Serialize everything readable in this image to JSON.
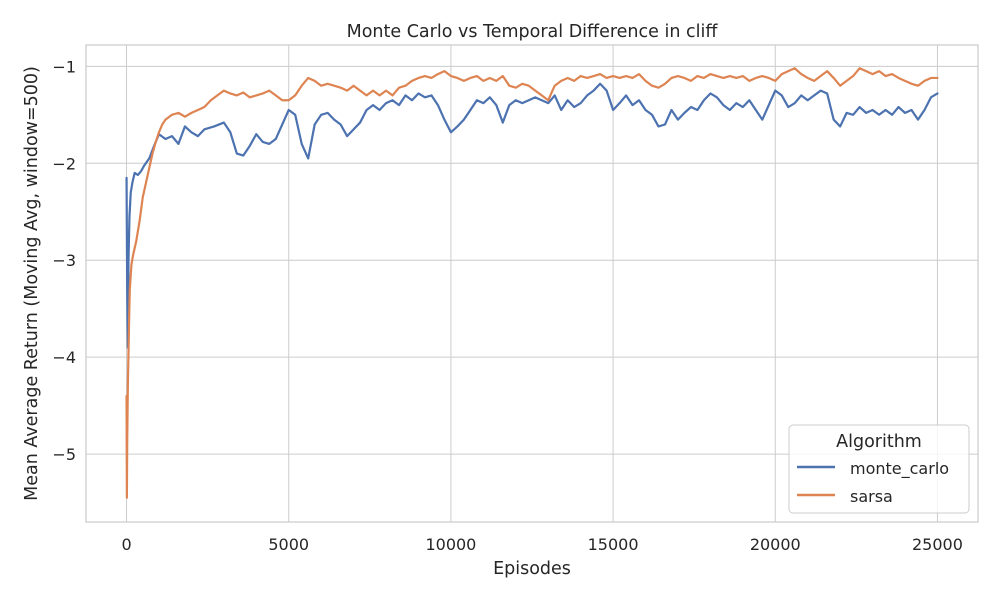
{
  "chart_data": {
    "type": "line",
    "title": "Monte Carlo vs Temporal Difference in cliff",
    "xlabel": "Episodes",
    "ylabel": "Mean Average Return (Moving Avg, window=500)",
    "xlim": [
      -1250,
      26250
    ],
    "ylim": [
      -5.7,
      -0.78
    ],
    "xticks": [
      0,
      5000,
      10000,
      15000,
      20000,
      25000
    ],
    "xtick_labels": [
      "0",
      "5000",
      "10000",
      "15000",
      "20000",
      "25000"
    ],
    "yticks": [
      -5,
      -4,
      -3,
      -2,
      -1
    ],
    "ytick_labels": [
      "−5",
      "−4",
      "−3",
      "−2",
      "−1"
    ],
    "grid": true,
    "legend": {
      "title": "Algorithm",
      "placement": "lower-right"
    },
    "series": [
      {
        "name": "monte_carlo",
        "color": "#4c72b0",
        "points": [
          [
            0,
            -2.15
          ],
          [
            20,
            -3.3
          ],
          [
            40,
            -3.9
          ],
          [
            60,
            -3.0
          ],
          [
            90,
            -2.55
          ],
          [
            130,
            -2.3
          ],
          [
            180,
            -2.2
          ],
          [
            250,
            -2.1
          ],
          [
            350,
            -2.12
          ],
          [
            450,
            -2.08
          ],
          [
            550,
            -2.02
          ],
          [
            700,
            -1.95
          ],
          [
            850,
            -1.82
          ],
          [
            1000,
            -1.7
          ],
          [
            1200,
            -1.75
          ],
          [
            1400,
            -1.72
          ],
          [
            1600,
            -1.8
          ],
          [
            1800,
            -1.62
          ],
          [
            2000,
            -1.68
          ],
          [
            2200,
            -1.72
          ],
          [
            2400,
            -1.65
          ],
          [
            2700,
            -1.62
          ],
          [
            3000,
            -1.58
          ],
          [
            3200,
            -1.68
          ],
          [
            3400,
            -1.9
          ],
          [
            3600,
            -1.92
          ],
          [
            3800,
            -1.82
          ],
          [
            4000,
            -1.7
          ],
          [
            4200,
            -1.78
          ],
          [
            4400,
            -1.8
          ],
          [
            4600,
            -1.75
          ],
          [
            4800,
            -1.6
          ],
          [
            5000,
            -1.45
          ],
          [
            5200,
            -1.5
          ],
          [
            5400,
            -1.8
          ],
          [
            5600,
            -1.95
          ],
          [
            5800,
            -1.6
          ],
          [
            6000,
            -1.5
          ],
          [
            6200,
            -1.48
          ],
          [
            6400,
            -1.55
          ],
          [
            6600,
            -1.6
          ],
          [
            6800,
            -1.72
          ],
          [
            7000,
            -1.65
          ],
          [
            7200,
            -1.58
          ],
          [
            7400,
            -1.45
          ],
          [
            7600,
            -1.4
          ],
          [
            7800,
            -1.45
          ],
          [
            8000,
            -1.38
          ],
          [
            8200,
            -1.35
          ],
          [
            8400,
            -1.4
          ],
          [
            8600,
            -1.3
          ],
          [
            8800,
            -1.35
          ],
          [
            9000,
            -1.28
          ],
          [
            9200,
            -1.32
          ],
          [
            9400,
            -1.3
          ],
          [
            9600,
            -1.4
          ],
          [
            9800,
            -1.55
          ],
          [
            10000,
            -1.68
          ],
          [
            10200,
            -1.62
          ],
          [
            10400,
            -1.55
          ],
          [
            10600,
            -1.45
          ],
          [
            10800,
            -1.35
          ],
          [
            11000,
            -1.38
          ],
          [
            11200,
            -1.32
          ],
          [
            11400,
            -1.4
          ],
          [
            11600,
            -1.58
          ],
          [
            11800,
            -1.4
          ],
          [
            12000,
            -1.35
          ],
          [
            12200,
            -1.38
          ],
          [
            12400,
            -1.35
          ],
          [
            12600,
            -1.32
          ],
          [
            12800,
            -1.35
          ],
          [
            13000,
            -1.38
          ],
          [
            13200,
            -1.3
          ],
          [
            13400,
            -1.45
          ],
          [
            13600,
            -1.35
          ],
          [
            13800,
            -1.42
          ],
          [
            14000,
            -1.38
          ],
          [
            14200,
            -1.3
          ],
          [
            14400,
            -1.25
          ],
          [
            14600,
            -1.18
          ],
          [
            14800,
            -1.25
          ],
          [
            15000,
            -1.45
          ],
          [
            15200,
            -1.38
          ],
          [
            15400,
            -1.3
          ],
          [
            15600,
            -1.4
          ],
          [
            15800,
            -1.35
          ],
          [
            16000,
            -1.45
          ],
          [
            16200,
            -1.5
          ],
          [
            16400,
            -1.62
          ],
          [
            16600,
            -1.6
          ],
          [
            16800,
            -1.45
          ],
          [
            17000,
            -1.55
          ],
          [
            17200,
            -1.48
          ],
          [
            17400,
            -1.42
          ],
          [
            17600,
            -1.45
          ],
          [
            17800,
            -1.35
          ],
          [
            18000,
            -1.28
          ],
          [
            18200,
            -1.32
          ],
          [
            18400,
            -1.4
          ],
          [
            18600,
            -1.45
          ],
          [
            18800,
            -1.38
          ],
          [
            19000,
            -1.42
          ],
          [
            19200,
            -1.35
          ],
          [
            19400,
            -1.45
          ],
          [
            19600,
            -1.55
          ],
          [
            19800,
            -1.4
          ],
          [
            20000,
            -1.25
          ],
          [
            20200,
            -1.3
          ],
          [
            20400,
            -1.42
          ],
          [
            20600,
            -1.38
          ],
          [
            20800,
            -1.3
          ],
          [
            21000,
            -1.35
          ],
          [
            21200,
            -1.3
          ],
          [
            21400,
            -1.25
          ],
          [
            21600,
            -1.28
          ],
          [
            21800,
            -1.55
          ],
          [
            22000,
            -1.62
          ],
          [
            22200,
            -1.48
          ],
          [
            22400,
            -1.5
          ],
          [
            22600,
            -1.42
          ],
          [
            22800,
            -1.48
          ],
          [
            23000,
            -1.45
          ],
          [
            23200,
            -1.5
          ],
          [
            23400,
            -1.45
          ],
          [
            23600,
            -1.5
          ],
          [
            23800,
            -1.42
          ],
          [
            24000,
            -1.48
          ],
          [
            24200,
            -1.45
          ],
          [
            24400,
            -1.55
          ],
          [
            24600,
            -1.45
          ],
          [
            24800,
            -1.32
          ],
          [
            25000,
            -1.28
          ]
        ]
      },
      {
        "name": "sarsa",
        "color": "#dd8452",
        "points": [
          [
            0,
            -4.4
          ],
          [
            10,
            -5.45
          ],
          [
            20,
            -4.9
          ],
          [
            40,
            -4.3
          ],
          [
            60,
            -3.95
          ],
          [
            80,
            -3.6
          ],
          [
            100,
            -3.3
          ],
          [
            150,
            -3.05
          ],
          [
            200,
            -2.95
          ],
          [
            300,
            -2.8
          ],
          [
            400,
            -2.6
          ],
          [
            500,
            -2.35
          ],
          [
            600,
            -2.2
          ],
          [
            700,
            -2.05
          ],
          [
            800,
            -1.9
          ],
          [
            900,
            -1.78
          ],
          [
            1000,
            -1.68
          ],
          [
            1100,
            -1.6
          ],
          [
            1200,
            -1.55
          ],
          [
            1400,
            -1.5
          ],
          [
            1600,
            -1.48
          ],
          [
            1800,
            -1.52
          ],
          [
            2000,
            -1.48
          ],
          [
            2200,
            -1.45
          ],
          [
            2400,
            -1.42
          ],
          [
            2600,
            -1.35
          ],
          [
            2800,
            -1.3
          ],
          [
            3000,
            -1.25
          ],
          [
            3200,
            -1.28
          ],
          [
            3400,
            -1.3
          ],
          [
            3600,
            -1.27
          ],
          [
            3800,
            -1.32
          ],
          [
            4000,
            -1.3
          ],
          [
            4200,
            -1.28
          ],
          [
            4400,
            -1.25
          ],
          [
            4600,
            -1.3
          ],
          [
            4800,
            -1.35
          ],
          [
            5000,
            -1.35
          ],
          [
            5200,
            -1.3
          ],
          [
            5400,
            -1.2
          ],
          [
            5600,
            -1.12
          ],
          [
            5800,
            -1.15
          ],
          [
            6000,
            -1.2
          ],
          [
            6200,
            -1.18
          ],
          [
            6400,
            -1.2
          ],
          [
            6600,
            -1.22
          ],
          [
            6800,
            -1.25
          ],
          [
            7000,
            -1.2
          ],
          [
            7200,
            -1.25
          ],
          [
            7400,
            -1.3
          ],
          [
            7600,
            -1.25
          ],
          [
            7800,
            -1.3
          ],
          [
            8000,
            -1.25
          ],
          [
            8200,
            -1.3
          ],
          [
            8400,
            -1.22
          ],
          [
            8600,
            -1.2
          ],
          [
            8800,
            -1.15
          ],
          [
            9000,
            -1.12
          ],
          [
            9200,
            -1.1
          ],
          [
            9400,
            -1.12
          ],
          [
            9600,
            -1.08
          ],
          [
            9800,
            -1.05
          ],
          [
            10000,
            -1.1
          ],
          [
            10200,
            -1.12
          ],
          [
            10400,
            -1.15
          ],
          [
            10600,
            -1.12
          ],
          [
            10800,
            -1.1
          ],
          [
            11000,
            -1.15
          ],
          [
            11200,
            -1.12
          ],
          [
            11400,
            -1.15
          ],
          [
            11600,
            -1.1
          ],
          [
            11800,
            -1.2
          ],
          [
            12000,
            -1.22
          ],
          [
            12200,
            -1.18
          ],
          [
            12400,
            -1.2
          ],
          [
            12600,
            -1.25
          ],
          [
            12800,
            -1.3
          ],
          [
            13000,
            -1.35
          ],
          [
            13200,
            -1.2
          ],
          [
            13400,
            -1.15
          ],
          [
            13600,
            -1.12
          ],
          [
            13800,
            -1.15
          ],
          [
            14000,
            -1.1
          ],
          [
            14200,
            -1.12
          ],
          [
            14400,
            -1.1
          ],
          [
            14600,
            -1.08
          ],
          [
            14800,
            -1.12
          ],
          [
            15000,
            -1.1
          ],
          [
            15200,
            -1.12
          ],
          [
            15400,
            -1.1
          ],
          [
            15600,
            -1.12
          ],
          [
            15800,
            -1.08
          ],
          [
            16000,
            -1.15
          ],
          [
            16200,
            -1.2
          ],
          [
            16400,
            -1.22
          ],
          [
            16600,
            -1.18
          ],
          [
            16800,
            -1.12
          ],
          [
            17000,
            -1.1
          ],
          [
            17200,
            -1.12
          ],
          [
            17400,
            -1.15
          ],
          [
            17600,
            -1.1
          ],
          [
            17800,
            -1.12
          ],
          [
            18000,
            -1.08
          ],
          [
            18200,
            -1.1
          ],
          [
            18400,
            -1.12
          ],
          [
            18600,
            -1.1
          ],
          [
            18800,
            -1.12
          ],
          [
            19000,
            -1.1
          ],
          [
            19200,
            -1.15
          ],
          [
            19400,
            -1.12
          ],
          [
            19600,
            -1.1
          ],
          [
            19800,
            -1.12
          ],
          [
            20000,
            -1.15
          ],
          [
            20200,
            -1.08
          ],
          [
            20400,
            -1.05
          ],
          [
            20600,
            -1.02
          ],
          [
            20800,
            -1.08
          ],
          [
            21000,
            -1.12
          ],
          [
            21200,
            -1.15
          ],
          [
            21400,
            -1.1
          ],
          [
            21600,
            -1.05
          ],
          [
            21800,
            -1.12
          ],
          [
            22000,
            -1.2
          ],
          [
            22200,
            -1.15
          ],
          [
            22400,
            -1.1
          ],
          [
            22600,
            -1.02
          ],
          [
            22800,
            -1.05
          ],
          [
            23000,
            -1.08
          ],
          [
            23200,
            -1.05
          ],
          [
            23400,
            -1.1
          ],
          [
            23600,
            -1.08
          ],
          [
            23800,
            -1.12
          ],
          [
            24000,
            -1.15
          ],
          [
            24200,
            -1.18
          ],
          [
            24400,
            -1.2
          ],
          [
            24600,
            -1.15
          ],
          [
            24800,
            -1.12
          ],
          [
            25000,
            -1.12
          ]
        ]
      }
    ]
  }
}
